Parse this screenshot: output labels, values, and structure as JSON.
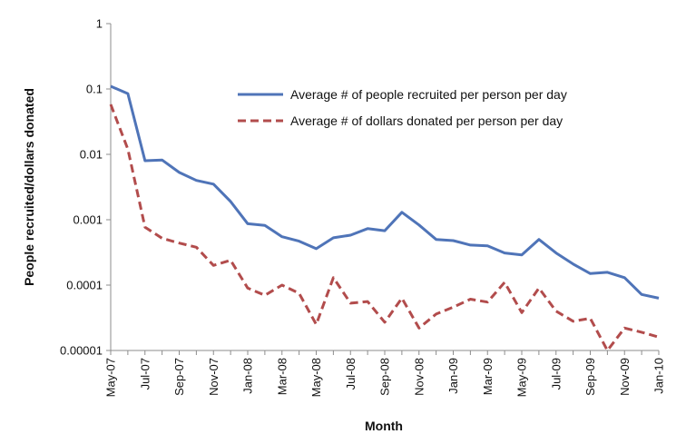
{
  "chart_data": {
    "type": "line",
    "title": "",
    "xlabel": "Month",
    "ylabel": "People recruited/dollars donated",
    "yscale": "log",
    "ylim": [
      1e-05,
      1
    ],
    "y_ticks": [
      1,
      0.1,
      0.01,
      0.001,
      0.0001,
      1e-05
    ],
    "y_tick_labels": [
      "1",
      "0.1",
      "0.01",
      "0.001",
      "0.0001",
      "0.00001"
    ],
    "grid": false,
    "legend_position": "top-right",
    "x": [
      "May-07",
      "Jun-07",
      "Jul-07",
      "Aug-07",
      "Sep-07",
      "Oct-07",
      "Nov-07",
      "Dec-07",
      "Jan-08",
      "Feb-08",
      "Mar-08",
      "Apr-08",
      "May-08",
      "Jun-08",
      "Jul-08",
      "Aug-08",
      "Sep-08",
      "Oct-08",
      "Nov-08",
      "Dec-08",
      "Jan-09",
      "Feb-09",
      "Mar-09",
      "Apr-09",
      "May-09",
      "Jun-09",
      "Jul-09",
      "Aug-09",
      "Sep-09",
      "Oct-09",
      "Nov-09",
      "Dec-09",
      "Jan-10"
    ],
    "x_tick_labels": [
      "May-07",
      "Jul-07",
      "Sep-07",
      "Nov-07",
      "Jan-08",
      "Mar-08",
      "May-08",
      "Jul-08",
      "Sep-08",
      "Nov-08",
      "Jan-09",
      "Mar-09",
      "May-09",
      "Jul-09",
      "Sep-09",
      "Nov-09",
      "Jan-10"
    ],
    "series": [
      {
        "name": "Average # of people recruited per person per day",
        "color": "#4f74b8",
        "dash": "solid",
        "values": [
          0.11,
          0.085,
          0.008,
          0.0082,
          0.0053,
          0.004,
          0.0035,
          0.0019,
          0.00087,
          0.00082,
          0.00055,
          0.00047,
          0.00036,
          0.00053,
          0.00058,
          0.00073,
          0.00068,
          0.0013,
          0.00083,
          0.0005,
          0.00048,
          0.00041,
          0.0004,
          0.00031,
          0.00029,
          0.0005,
          0.00031,
          0.00021,
          0.00015,
          0.000157,
          0.00013,
          7.2e-05,
          6.3e-05
        ]
      },
      {
        "name": "Average # of dollars donated per person per day",
        "color": "#b24c4c",
        "dash": "dashed",
        "values": [
          0.058,
          0.012,
          0.00077,
          0.00052,
          0.00044,
          0.00038,
          0.0002,
          0.00024,
          9e-05,
          7e-05,
          0.0001,
          7.5e-05,
          2.5e-05,
          0.00013,
          5.3e-05,
          5.6e-05,
          2.7e-05,
          6.3e-05,
          2.2e-05,
          3.6e-05,
          4.6e-05,
          6.1e-05,
          5.5e-05,
          0.00011,
          3.8e-05,
          9e-05,
          4e-05,
          2.8e-05,
          3.1e-05,
          1e-05,
          2.2e-05,
          1.9e-05,
          1.6e-05
        ]
      }
    ]
  }
}
